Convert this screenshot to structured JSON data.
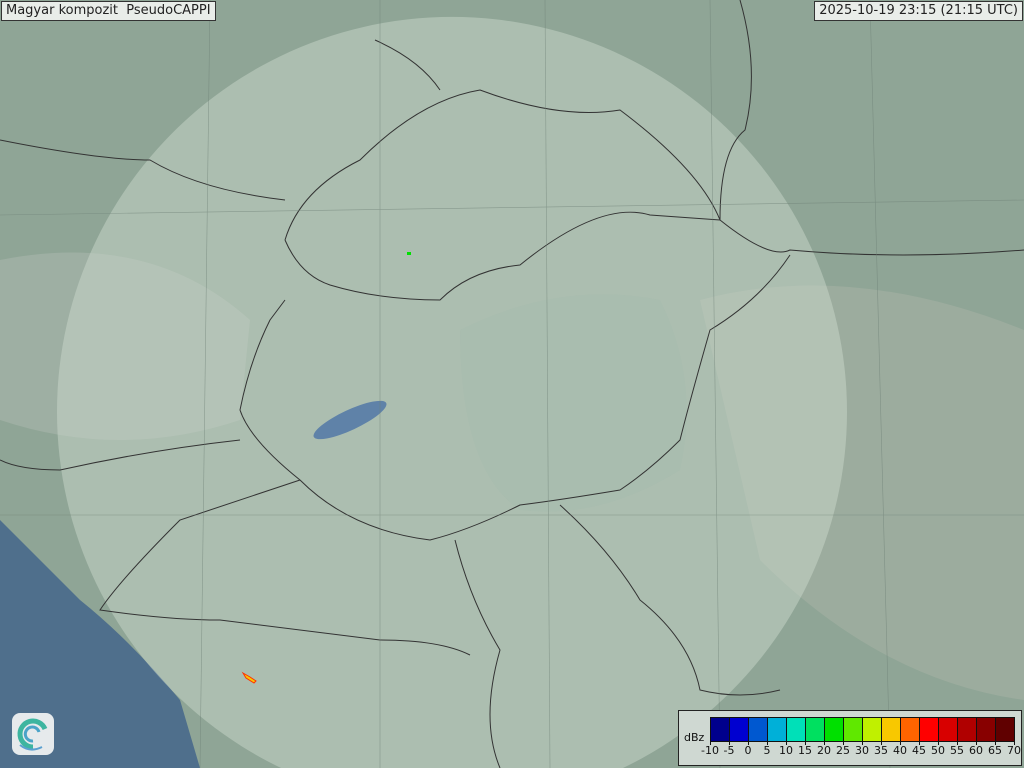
{
  "header": {
    "title": "Magyar kompozit  PseudoCAPPI",
    "timestamp": "2025-10-19 23:15 (21:15 UTC)"
  },
  "map": {
    "land_color": "#8fa596",
    "sea_color": "#4a6a8a",
    "radar_coverage_color": "#c9d8cc",
    "echoes": [
      {
        "location": "north-central Slovakia",
        "color": "#00e000"
      },
      {
        "location": "Bosnia",
        "color": "#f8c800"
      }
    ]
  },
  "legend": {
    "unit": "dBz",
    "labels": [
      "-10",
      "-5",
      "0",
      "5",
      "10",
      "15",
      "20",
      "25",
      "30",
      "35",
      "40",
      "45",
      "50",
      "55",
      "60",
      "65",
      "70"
    ],
    "colors": [
      "#00008c",
      "#0000d0",
      "#0058d0",
      "#00b0d8",
      "#00e0b8",
      "#00e060",
      "#00e000",
      "#60e800",
      "#c0f000",
      "#f8c800",
      "#ff6400",
      "#ff0000",
      "#d80000",
      "#b00000",
      "#880000",
      "#600000"
    ]
  },
  "logo": {
    "name": "swirl-logo-icon"
  }
}
